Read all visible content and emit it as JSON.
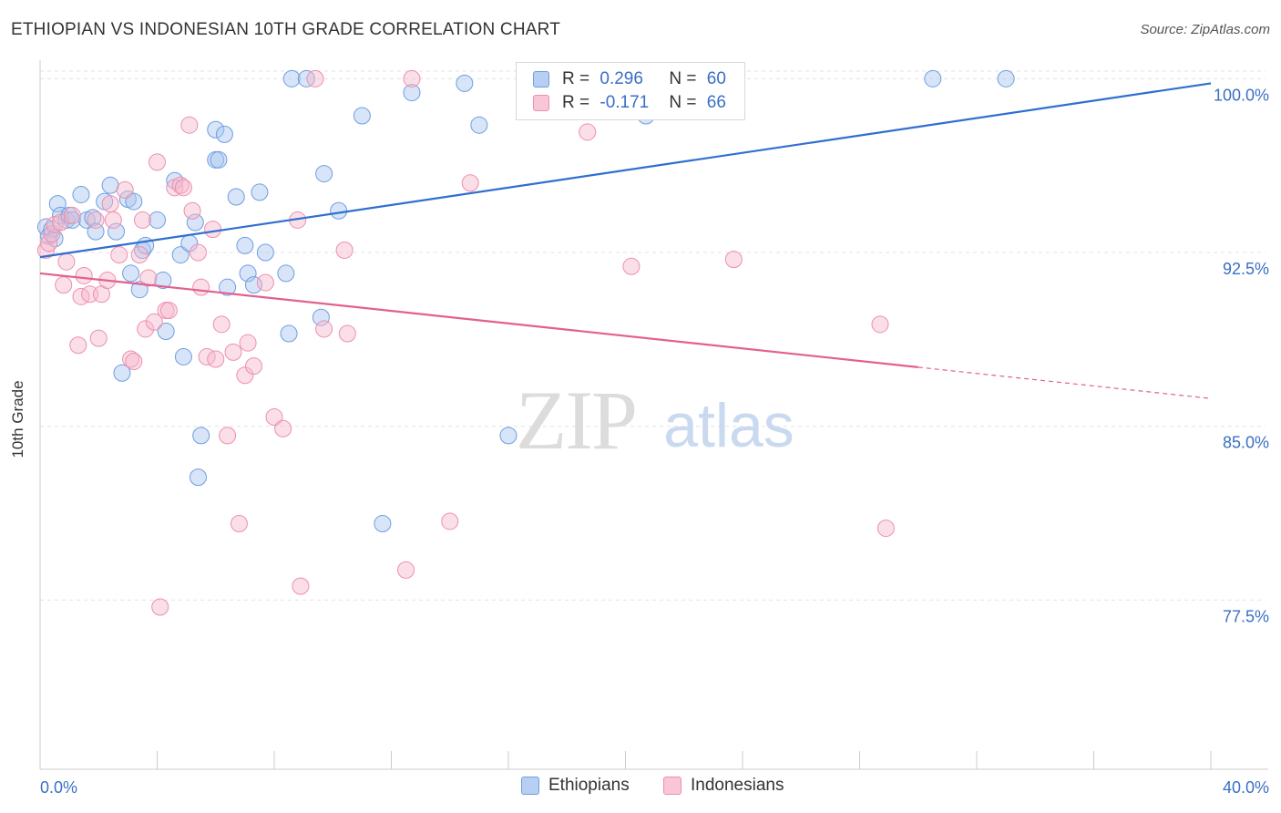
{
  "title": "ETHIOPIAN VS INDONESIAN 10TH GRADE CORRELATION CHART",
  "source": "Source: ZipAtlas.com",
  "watermark": {
    "zip": "ZIP",
    "atlas": "atlas"
  },
  "legend_top": {
    "rows": [
      {
        "r_label": "R = ",
        "r_value": "0.296",
        "n_label": "N = ",
        "n_value": "60"
      },
      {
        "r_label": "R = ",
        "r_value": "-0.171",
        "n_label": "N = ",
        "n_value": "66"
      }
    ]
  },
  "legend_bottom": {
    "items": [
      "Ethiopians",
      "Indonesians"
    ]
  },
  "colors": {
    "ethiopian_fill": "#a9c6ef",
    "ethiopian_stroke": "#6d9ee0",
    "ethiopian_line": "#2f6fcf",
    "indonesian_fill": "#f6b7cb",
    "indonesian_stroke": "#ec8fae",
    "indonesian_line": "#e2608f",
    "tick_label": "#3a6fc4",
    "grid": "#e3e3e3"
  },
  "chart_data": {
    "type": "scatter",
    "title": "ETHIOPIAN VS INDONESIAN 10TH GRADE CORRELATION CHART",
    "xlabel": "",
    "ylabel": "10th Grade",
    "xlim": [
      0,
      40
    ],
    "ylim": [
      70.2,
      100.8
    ],
    "x_tick_labels": [
      "0.0%",
      "40.0%"
    ],
    "y_ticks": [
      77.5,
      85.0,
      92.5,
      100.0
    ],
    "y_tick_labels": [
      "77.5%",
      "85.0%",
      "92.5%",
      "100.0%"
    ],
    "grid": true,
    "legend_position": "top-center",
    "series": [
      {
        "name": "Ethiopians",
        "trend": {
          "x": [
            0,
            40
          ],
          "y": [
            92.3,
            99.8
          ],
          "dashed_from_x": null
        },
        "points": [
          [
            0.2,
            93.6
          ],
          [
            0.3,
            93.2
          ],
          [
            0.4,
            93.5
          ],
          [
            0.5,
            93.1
          ],
          [
            0.6,
            94.6
          ],
          [
            0.7,
            94.1
          ],
          [
            0.9,
            93.9
          ],
          [
            1.0,
            94.1
          ],
          [
            1.1,
            93.9
          ],
          [
            1.4,
            95.0
          ],
          [
            1.6,
            93.9
          ],
          [
            1.8,
            94.0
          ],
          [
            1.9,
            93.4
          ],
          [
            2.2,
            94.7
          ],
          [
            2.4,
            95.4
          ],
          [
            2.6,
            93.4
          ],
          [
            2.8,
            87.3
          ],
          [
            3.0,
            94.8
          ],
          [
            3.1,
            91.6
          ],
          [
            3.2,
            94.7
          ],
          [
            3.4,
            90.9
          ],
          [
            3.5,
            92.6
          ],
          [
            3.6,
            92.8
          ],
          [
            4.0,
            93.9
          ],
          [
            4.2,
            91.3
          ],
          [
            4.3,
            89.1
          ],
          [
            4.6,
            95.6
          ],
          [
            4.8,
            92.4
          ],
          [
            4.9,
            88.0
          ],
          [
            5.1,
            92.9
          ],
          [
            5.3,
            93.8
          ],
          [
            5.5,
            84.6
          ],
          [
            5.4,
            82.8
          ],
          [
            6.0,
            96.5
          ],
          [
            6.1,
            96.5
          ],
          [
            6.0,
            97.8
          ],
          [
            6.3,
            97.6
          ],
          [
            6.4,
            91.0
          ],
          [
            6.7,
            94.9
          ],
          [
            7.0,
            92.8
          ],
          [
            7.1,
            91.6
          ],
          [
            7.3,
            91.1
          ],
          [
            7.5,
            95.1
          ],
          [
            7.7,
            92.5
          ],
          [
            8.4,
            91.6
          ],
          [
            8.5,
            89.0
          ],
          [
            8.6,
            100.0
          ],
          [
            9.1,
            100.0
          ],
          [
            9.6,
            89.7
          ],
          [
            9.7,
            95.9
          ],
          [
            10.2,
            94.3
          ],
          [
            11.0,
            98.4
          ],
          [
            11.7,
            80.8
          ],
          [
            12.7,
            99.4
          ],
          [
            14.5,
            99.8
          ],
          [
            15.0,
            98.0
          ],
          [
            16.0,
            84.6
          ],
          [
            20.7,
            98.4
          ],
          [
            30.5,
            100.0
          ],
          [
            33.0,
            100.0
          ]
        ]
      },
      {
        "name": "Indonesians",
        "trend": {
          "x": [
            0,
            40
          ],
          "y": [
            91.6,
            86.2
          ],
          "dashed_from_x": 30
        },
        "points": [
          [
            0.2,
            92.6
          ],
          [
            0.3,
            92.9
          ],
          [
            0.4,
            93.3
          ],
          [
            0.5,
            93.7
          ],
          [
            0.7,
            93.8
          ],
          [
            0.8,
            91.1
          ],
          [
            0.9,
            92.1
          ],
          [
            1.1,
            94.1
          ],
          [
            1.3,
            88.5
          ],
          [
            1.4,
            90.6
          ],
          [
            1.5,
            91.5
          ],
          [
            1.7,
            90.7
          ],
          [
            1.9,
            93.9
          ],
          [
            2.0,
            88.8
          ],
          [
            2.1,
            90.7
          ],
          [
            2.3,
            91.3
          ],
          [
            2.4,
            94.6
          ],
          [
            2.5,
            93.9
          ],
          [
            2.7,
            92.4
          ],
          [
            2.9,
            95.2
          ],
          [
            3.1,
            87.9
          ],
          [
            3.2,
            87.8
          ],
          [
            3.4,
            92.4
          ],
          [
            3.5,
            93.9
          ],
          [
            3.6,
            89.2
          ],
          [
            3.7,
            91.4
          ],
          [
            3.9,
            89.5
          ],
          [
            4.0,
            96.4
          ],
          [
            4.1,
            77.2
          ],
          [
            4.3,
            90.0
          ],
          [
            4.4,
            90.0
          ],
          [
            4.6,
            95.3
          ],
          [
            4.8,
            95.4
          ],
          [
            4.9,
            95.3
          ],
          [
            5.1,
            98.0
          ],
          [
            5.2,
            94.3
          ],
          [
            5.4,
            92.5
          ],
          [
            5.5,
            91.0
          ],
          [
            5.7,
            88.0
          ],
          [
            5.9,
            93.5
          ],
          [
            6.0,
            87.9
          ],
          [
            6.2,
            89.4
          ],
          [
            6.4,
            84.6
          ],
          [
            6.6,
            88.2
          ],
          [
            6.8,
            80.8
          ],
          [
            7.0,
            87.2
          ],
          [
            7.1,
            88.6
          ],
          [
            7.3,
            87.6
          ],
          [
            7.7,
            91.2
          ],
          [
            8.0,
            85.4
          ],
          [
            8.3,
            84.9
          ],
          [
            8.8,
            93.9
          ],
          [
            8.9,
            78.1
          ],
          [
            9.4,
            100.0
          ],
          [
            9.7,
            89.2
          ],
          [
            10.4,
            92.6
          ],
          [
            10.5,
            89.0
          ],
          [
            12.5,
            78.8
          ],
          [
            12.7,
            100.0
          ],
          [
            14.0,
            80.9
          ],
          [
            14.7,
            95.5
          ],
          [
            18.7,
            97.7
          ],
          [
            20.2,
            91.9
          ],
          [
            23.7,
            92.2
          ],
          [
            28.7,
            89.4
          ],
          [
            28.9,
            80.6
          ]
        ]
      }
    ]
  }
}
